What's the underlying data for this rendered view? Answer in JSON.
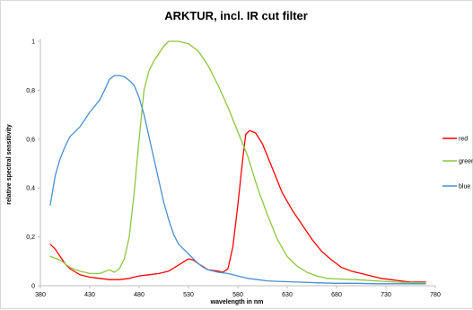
{
  "chart_data": {
    "type": "line",
    "title": "ARKTUR, incl. IR cut filter",
    "xlabel": "wavelength in nm",
    "ylabel": "relative spectral sensitivity",
    "xlim": [
      380,
      780
    ],
    "ylim": [
      0,
      1
    ],
    "x_ticks": [
      "380",
      "430",
      "480",
      "530",
      "580",
      "630",
      "680",
      "730",
      "780"
    ],
    "y_ticks": [
      "0",
      "0,2",
      "0,4",
      "0,6",
      "0,8",
      "1"
    ],
    "grid": false,
    "legend_position": "right",
    "series": [
      {
        "name": "red",
        "color": "#ff0000",
        "points": [
          [
            390,
            0.17
          ],
          [
            395,
            0.15
          ],
          [
            400,
            0.12
          ],
          [
            405,
            0.09
          ],
          [
            410,
            0.07
          ],
          [
            420,
            0.045
          ],
          [
            430,
            0.035
          ],
          [
            440,
            0.03
          ],
          [
            450,
            0.025
          ],
          [
            460,
            0.025
          ],
          [
            470,
            0.03
          ],
          [
            480,
            0.04
          ],
          [
            490,
            0.045
          ],
          [
            500,
            0.05
          ],
          [
            510,
            0.06
          ],
          [
            520,
            0.085
          ],
          [
            530,
            0.11
          ],
          [
            535,
            0.105
          ],
          [
            540,
            0.09
          ],
          [
            550,
            0.065
          ],
          [
            560,
            0.06
          ],
          [
            565,
            0.055
          ],
          [
            570,
            0.07
          ],
          [
            575,
            0.16
          ],
          [
            580,
            0.33
          ],
          [
            585,
            0.52
          ],
          [
            588,
            0.62
          ],
          [
            592,
            0.635
          ],
          [
            598,
            0.625
          ],
          [
            605,
            0.58
          ],
          [
            615,
            0.48
          ],
          [
            625,
            0.38
          ],
          [
            635,
            0.31
          ],
          [
            645,
            0.25
          ],
          [
            655,
            0.19
          ],
          [
            665,
            0.14
          ],
          [
            675,
            0.105
          ],
          [
            685,
            0.075
          ],
          [
            695,
            0.06
          ],
          [
            705,
            0.05
          ],
          [
            715,
            0.04
          ],
          [
            725,
            0.03
          ],
          [
            735,
            0.025
          ],
          [
            745,
            0.02
          ],
          [
            755,
            0.015
          ],
          [
            765,
            0.015
          ],
          [
            770,
            0.015
          ]
        ]
      },
      {
        "name": "green",
        "color": "#8dc63f",
        "points": [
          [
            390,
            0.12
          ],
          [
            400,
            0.105
          ],
          [
            410,
            0.075
          ],
          [
            420,
            0.06
          ],
          [
            430,
            0.05
          ],
          [
            440,
            0.05
          ],
          [
            450,
            0.065
          ],
          [
            455,
            0.055
          ],
          [
            460,
            0.07
          ],
          [
            465,
            0.11
          ],
          [
            470,
            0.2
          ],
          [
            475,
            0.38
          ],
          [
            480,
            0.6
          ],
          [
            485,
            0.8
          ],
          [
            490,
            0.88
          ],
          [
            495,
            0.92
          ],
          [
            500,
            0.95
          ],
          [
            505,
            0.98
          ],
          [
            510,
            1.0
          ],
          [
            520,
            1.0
          ],
          [
            530,
            0.99
          ],
          [
            540,
            0.96
          ],
          [
            550,
            0.9
          ],
          [
            560,
            0.82
          ],
          [
            570,
            0.73
          ],
          [
            580,
            0.63
          ],
          [
            590,
            0.53
          ],
          [
            600,
            0.4
          ],
          [
            610,
            0.29
          ],
          [
            620,
            0.19
          ],
          [
            630,
            0.12
          ],
          [
            640,
            0.08
          ],
          [
            650,
            0.055
          ],
          [
            660,
            0.04
          ],
          [
            670,
            0.03
          ],
          [
            680,
            0.028
          ],
          [
            700,
            0.025
          ],
          [
            720,
            0.02
          ],
          [
            740,
            0.015
          ],
          [
            760,
            0.012
          ],
          [
            770,
            0.012
          ]
        ]
      },
      {
        "name": "blue",
        "color": "#4a8fd0",
        "points": [
          [
            390,
            0.33
          ],
          [
            395,
            0.45
          ],
          [
            400,
            0.52
          ],
          [
            405,
            0.57
          ],
          [
            410,
            0.61
          ],
          [
            415,
            0.63
          ],
          [
            420,
            0.65
          ],
          [
            430,
            0.71
          ],
          [
            440,
            0.76
          ],
          [
            445,
            0.8
          ],
          [
            450,
            0.845
          ],
          [
            455,
            0.86
          ],
          [
            460,
            0.86
          ],
          [
            465,
            0.855
          ],
          [
            470,
            0.84
          ],
          [
            475,
            0.82
          ],
          [
            480,
            0.77
          ],
          [
            485,
            0.7
          ],
          [
            490,
            0.61
          ],
          [
            495,
            0.52
          ],
          [
            500,
            0.43
          ],
          [
            505,
            0.34
          ],
          [
            510,
            0.27
          ],
          [
            515,
            0.21
          ],
          [
            520,
            0.17
          ],
          [
            525,
            0.15
          ],
          [
            530,
            0.13
          ],
          [
            535,
            0.11
          ],
          [
            540,
            0.09
          ],
          [
            545,
            0.075
          ],
          [
            550,
            0.065
          ],
          [
            560,
            0.055
          ],
          [
            570,
            0.05
          ],
          [
            580,
            0.04
          ],
          [
            590,
            0.03
          ],
          [
            600,
            0.025
          ],
          [
            610,
            0.02
          ],
          [
            620,
            0.018
          ],
          [
            640,
            0.015
          ],
          [
            660,
            0.012
          ],
          [
            680,
            0.01
          ],
          [
            700,
            0.01
          ],
          [
            720,
            0.008
          ],
          [
            740,
            0.008
          ],
          [
            760,
            0.008
          ],
          [
            770,
            0.008
          ]
        ]
      }
    ]
  }
}
